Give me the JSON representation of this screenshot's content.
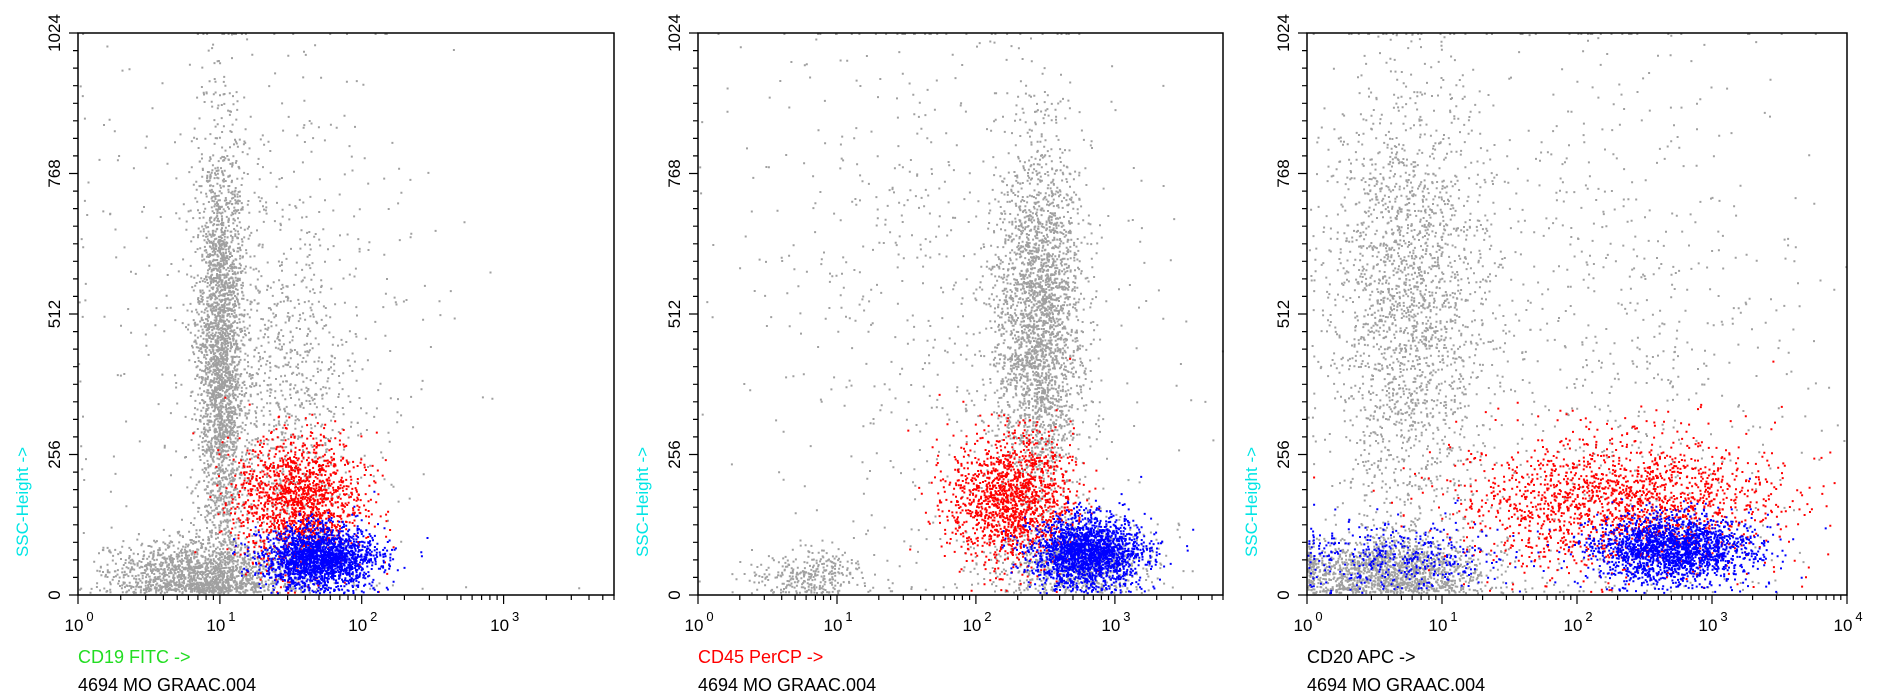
{
  "chart_data": [
    {
      "type": "scatter",
      "xlabel": "CD19 FITC ->",
      "xlabel_color": "#22dd22",
      "ylabel": "SSC-Height ->",
      "ylabel_color": "#00e5e5",
      "sample": "4694 MO GRAAC.004",
      "x_scale": "log",
      "xlim": [
        1,
        6000
      ],
      "ylim": [
        0,
        1024
      ],
      "x_ticks": [
        1,
        10,
        100,
        1000
      ],
      "x_tick_labels": [
        {
          "base": "10",
          "exp": "0"
        },
        {
          "base": "10",
          "exp": "1"
        },
        {
          "base": "10",
          "exp": "2"
        },
        {
          "base": "10",
          "exp": "3"
        }
      ],
      "y_ticks": [
        0,
        256,
        512,
        768,
        1024
      ],
      "y_tick_labels": [
        "0",
        "256",
        "512",
        "768",
        "1024"
      ],
      "series": [
        {
          "color": "#a0a0a0",
          "clusters": [
            {
              "n": 2600,
              "x_log": 1.0,
              "x_sd": 0.08,
              "y": 440,
              "y_sd": 190
            },
            {
              "n": 1500,
              "x_log": 0.85,
              "x_sd": 0.3,
              "y": 40,
              "y_sd": 30
            },
            {
              "n": 900,
              "x_log": 1.4,
              "x_sd": 0.3,
              "y": 350,
              "y_sd": 200
            },
            {
              "n": 500,
              "x_log": 1.3,
              "x_sd": 0.7,
              "y": 520,
              "y_sd": 280
            }
          ]
        },
        {
          "color": "#ff0000",
          "clusters": [
            {
              "n": 1500,
              "x_log": 1.55,
              "x_sd": 0.22,
              "y": 170,
              "y_sd": 60
            }
          ]
        },
        {
          "color": "#0000ff",
          "clusters": [
            {
              "n": 2000,
              "x_log": 1.7,
              "x_sd": 0.2,
              "y": 70,
              "y_sd": 28
            }
          ]
        }
      ]
    },
    {
      "type": "scatter",
      "xlabel": "CD45 PerCP ->",
      "xlabel_color": "#ff0000",
      "ylabel": "SSC-Height ->",
      "ylabel_color": "#00e5e5",
      "sample": "4694 MO GRAAC.004",
      "x_scale": "log",
      "xlim": [
        1,
        6000
      ],
      "ylim": [
        0,
        1024
      ],
      "x_ticks": [
        1,
        10,
        100,
        1000
      ],
      "x_tick_labels": [
        {
          "base": "10",
          "exp": "0"
        },
        {
          "base": "10",
          "exp": "1"
        },
        {
          "base": "10",
          "exp": "2"
        },
        {
          "base": "10",
          "exp": "3"
        }
      ],
      "y_ticks": [
        0,
        256,
        512,
        768,
        1024
      ],
      "y_tick_labels": [
        "0",
        "256",
        "512",
        "768",
        "1024"
      ],
      "series": [
        {
          "color": "#a0a0a0",
          "clusters": [
            {
              "n": 2600,
              "x_log": 2.45,
              "x_sd": 0.15,
              "y": 500,
              "y_sd": 160
            },
            {
              "n": 700,
              "x_log": 2.7,
              "x_sd": 0.3,
              "y": 60,
              "y_sd": 35
            },
            {
              "n": 300,
              "x_log": 0.8,
              "x_sd": 0.2,
              "y": 40,
              "y_sd": 25
            },
            {
              "n": 700,
              "x_log": 1.8,
              "x_sd": 0.8,
              "y": 520,
              "y_sd": 290
            }
          ]
        },
        {
          "color": "#ff0000",
          "clusters": [
            {
              "n": 1500,
              "x_log": 2.25,
              "x_sd": 0.22,
              "y": 175,
              "y_sd": 60
            }
          ]
        },
        {
          "color": "#0000ff",
          "clusters": [
            {
              "n": 2000,
              "x_log": 2.8,
              "x_sd": 0.2,
              "y": 80,
              "y_sd": 32
            }
          ]
        }
      ]
    },
    {
      "type": "scatter",
      "xlabel": "CD20 APC ->",
      "xlabel_color": "#000000",
      "ylabel": "SSC-Height ->",
      "ylabel_color": "#00e5e5",
      "sample": "4694 MO GRAAC.004",
      "x_scale": "log",
      "xlim": [
        1,
        10000
      ],
      "ylim": [
        0,
        1024
      ],
      "x_ticks": [
        1,
        10,
        100,
        1000,
        10000
      ],
      "x_tick_labels": [
        {
          "base": "10",
          "exp": "0"
        },
        {
          "base": "10",
          "exp": "1"
        },
        {
          "base": "10",
          "exp": "2"
        },
        {
          "base": "10",
          "exp": "3"
        },
        {
          "base": "10",
          "exp": "4"
        }
      ],
      "y_ticks": [
        0,
        256,
        512,
        768,
        1024
      ],
      "y_tick_labels": [
        "0",
        "256",
        "512",
        "768",
        "1024"
      ],
      "series": [
        {
          "color": "#a0a0a0",
          "clusters": [
            {
              "n": 2200,
              "x_log": 0.75,
              "x_sd": 0.3,
              "y": 520,
              "y_sd": 210
            },
            {
              "n": 1500,
              "x_log": 0.6,
              "x_sd": 0.35,
              "y": 45,
              "y_sd": 30
            },
            {
              "n": 700,
              "x_log": 2.4,
              "x_sd": 0.7,
              "y": 480,
              "y_sd": 300
            }
          ]
        },
        {
          "color": "#ff0000",
          "clusters": [
            {
              "n": 1800,
              "x_log": 2.3,
              "x_sd": 0.6,
              "y": 170,
              "y_sd": 60
            }
          ]
        },
        {
          "color": "#0000ff",
          "clusters": [
            {
              "n": 2000,
              "x_log": 2.7,
              "x_sd": 0.3,
              "y": 85,
              "y_sd": 30
            },
            {
              "n": 400,
              "x_log": 0.7,
              "x_sd": 0.4,
              "y": 70,
              "y_sd": 35
            }
          ]
        }
      ]
    }
  ]
}
